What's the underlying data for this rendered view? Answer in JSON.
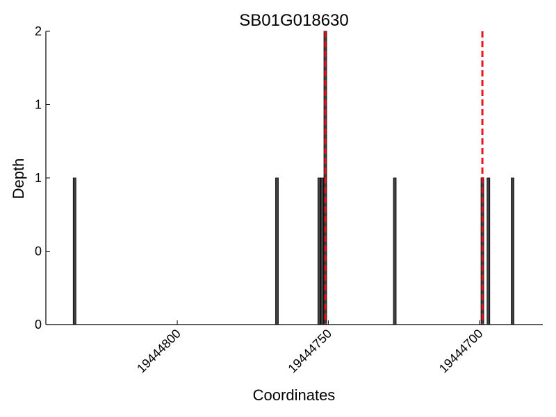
{
  "chart_data": {
    "type": "bar",
    "title": "SB01G018630",
    "xlabel": "Coordinates",
    "ylabel": "Depth",
    "x_reversed": true,
    "xlim": [
      19444843.5,
      19444679.0
    ],
    "ylim": [
      0,
      2
    ],
    "y_ticks": [
      {
        "value": 0,
        "label": "0"
      },
      {
        "value": 0.5,
        "label": "0"
      },
      {
        "value": 1,
        "label": "1"
      },
      {
        "value": 1.5,
        "label": "1"
      },
      {
        "value": 2,
        "label": "2"
      }
    ],
    "x_ticks": [
      {
        "value": 19444800,
        "label": "19444800"
      },
      {
        "value": 19444750,
        "label": "19444750"
      },
      {
        "value": 19444700,
        "label": "19444700"
      }
    ],
    "bars": [
      {
        "x": 19444834,
        "value": 1
      },
      {
        "x": 19444767,
        "value": 1
      },
      {
        "x": 19444753,
        "value": 1
      },
      {
        "x": 19444752,
        "value": 1
      },
      {
        "x": 19444751,
        "value": 2
      },
      {
        "x": 19444728,
        "value": 1
      },
      {
        "x": 19444699,
        "value": 1
      },
      {
        "x": 19444697,
        "value": 1
      },
      {
        "x": 19444689,
        "value": 1
      }
    ],
    "markers": [
      {
        "x": 19444751,
        "style": "dashed",
        "color": "#e8141c"
      },
      {
        "x": 19444699,
        "style": "dashed",
        "color": "#e8141c"
      }
    ],
    "colors": {
      "bar": "#404040",
      "bar_edge": "#000000",
      "marker": "#e8141c",
      "axis": "#000000"
    }
  }
}
